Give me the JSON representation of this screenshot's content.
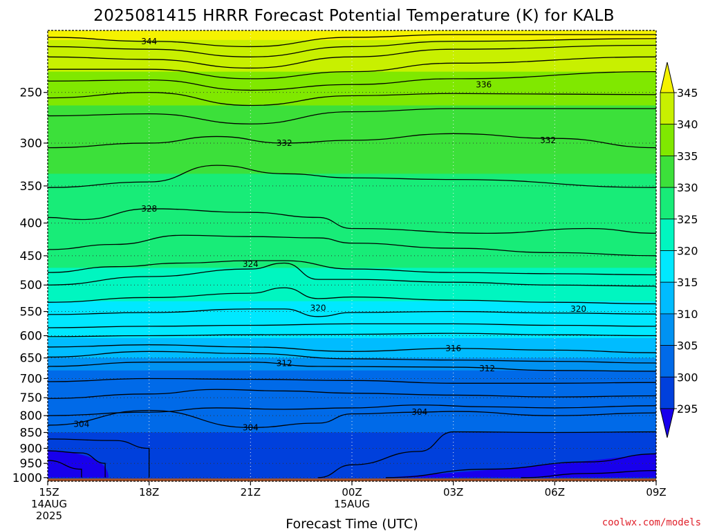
{
  "chart_data": {
    "type": "contour",
    "title": "2025081415 HRRR Forecast Potential Temperature (K) for KALB",
    "xlabel": "Forecast Time (UTC)",
    "credit": "coolwx.com/models",
    "y_axis": {
      "scale": "log-pressure",
      "ticks": [
        250,
        300,
        350,
        400,
        450,
        500,
        550,
        600,
        650,
        700,
        750,
        800,
        850,
        900,
        950,
        1000
      ],
      "range_hPa": [
        200,
        1013
      ]
    },
    "x_axis": {
      "range_hours": [
        0,
        18
      ],
      "ticks": [
        {
          "hour": 0,
          "lines": [
            "15Z",
            "14AUG",
            "2025"
          ]
        },
        {
          "hour": 3,
          "lines": [
            "18Z"
          ]
        },
        {
          "hour": 6,
          "lines": [
            "21Z"
          ]
        },
        {
          "hour": 9,
          "lines": [
            "00Z",
            "15AUG"
          ]
        },
        {
          "hour": 12,
          "lines": [
            "03Z"
          ]
        },
        {
          "hour": 15,
          "lines": [
            "06Z"
          ]
        },
        {
          "hour": 18,
          "lines": [
            "09Z"
          ]
        }
      ]
    },
    "grid": "dotted",
    "colorbar": {
      "labels": [
        "345",
        "340",
        "335",
        "330",
        "325",
        "320",
        "315",
        "310",
        "305",
        "300",
        "295"
      ],
      "fill_colors": [
        "#f5f200",
        "#c8f000",
        "#80e800",
        "#3ce03a",
        "#18ec78",
        "#00f6c0",
        "#00e8ff",
        "#00bcff",
        "#0092f2",
        "#006ae8",
        "#0040dc",
        "#1800ec"
      ]
    },
    "contour_labels": [
      {
        "text": "344",
        "hour": 3.0,
        "p": 208
      },
      {
        "text": "336",
        "hour": 12.9,
        "p": 243
      },
      {
        "text": "332",
        "hour": 7.0,
        "p": 300
      },
      {
        "text": "332",
        "hour": 14.8,
        "p": 297
      },
      {
        "text": "328",
        "hour": 3.0,
        "p": 380
      },
      {
        "text": "324",
        "hour": 6.0,
        "p": 464
      },
      {
        "text": "320",
        "hour": 8.0,
        "p": 543
      },
      {
        "text": "320",
        "hour": 15.7,
        "p": 545
      },
      {
        "text": "316",
        "hour": 12.0,
        "p": 628
      },
      {
        "text": "312",
        "hour": 7.0,
        "p": 663
      },
      {
        "text": "312",
        "hour": 13.0,
        "p": 675
      },
      {
        "text": "304",
        "hour": 1.0,
        "p": 825
      },
      {
        "text": "304",
        "hour": 6.0,
        "p": 835
      },
      {
        "text": "304",
        "hour": 11.0,
        "p": 790
      }
    ],
    "contours": [
      {
        "value": 344,
        "points": [
          [
            0,
            205
          ],
          [
            3,
            208
          ],
          [
            6,
            212
          ],
          [
            9,
            205
          ],
          [
            12,
            203
          ],
          [
            18,
            203
          ]
        ]
      },
      {
        "value": 342,
        "points": [
          [
            0,
            212
          ],
          [
            3,
            214
          ],
          [
            6,
            220
          ],
          [
            9,
            212
          ],
          [
            12,
            208
          ],
          [
            18,
            206
          ]
        ]
      },
      {
        "value": 340,
        "points": [
          [
            0,
            220
          ],
          [
            3,
            222
          ],
          [
            6,
            229
          ],
          [
            9,
            220
          ],
          [
            12,
            214
          ],
          [
            18,
            211
          ]
        ]
      },
      {
        "value": 338,
        "points": [
          [
            0,
            230
          ],
          [
            3,
            230
          ],
          [
            6,
            238
          ],
          [
            9,
            232
          ],
          [
            12,
            225
          ],
          [
            18,
            220
          ]
        ]
      },
      {
        "value": 336,
        "points": [
          [
            0,
            240
          ],
          [
            3,
            239
          ],
          [
            6,
            248
          ],
          [
            9,
            243
          ],
          [
            12,
            238
          ],
          [
            18,
            232
          ]
        ]
      },
      {
        "value": 334,
        "points": [
          [
            0,
            255
          ],
          [
            3,
            250
          ],
          [
            6,
            262
          ],
          [
            9,
            253
          ],
          [
            12,
            251
          ],
          [
            18,
            252
          ]
        ]
      },
      {
        "value": 333,
        "points": [
          [
            0,
            272
          ],
          [
            3,
            270
          ],
          [
            6,
            280
          ],
          [
            9,
            268
          ],
          [
            12,
            265
          ],
          [
            18,
            265
          ]
        ]
      },
      {
        "value": 332,
        "points": [
          [
            0,
            305
          ],
          [
            3,
            300
          ],
          [
            5,
            293
          ],
          [
            7,
            300
          ],
          [
            9,
            297
          ],
          [
            12,
            290
          ],
          [
            15,
            295
          ],
          [
            18,
            305
          ]
        ]
      },
      {
        "value": 330,
        "points": [
          [
            0,
            352
          ],
          [
            3,
            345
          ],
          [
            5,
            325
          ],
          [
            7,
            335
          ],
          [
            9,
            340
          ],
          [
            12,
            342
          ],
          [
            18,
            352
          ]
        ]
      },
      {
        "value": 328,
        "points": [
          [
            0,
            392
          ],
          [
            1,
            395
          ],
          [
            3,
            380
          ],
          [
            6,
            385
          ],
          [
            8,
            392
          ],
          [
            9,
            408
          ],
          [
            13,
            415
          ],
          [
            16,
            408
          ],
          [
            18,
            415
          ]
        ]
      },
      {
        "value": 326,
        "points": [
          [
            0,
            440
          ],
          [
            2,
            432
          ],
          [
            4,
            418
          ],
          [
            6,
            420
          ],
          [
            8,
            422
          ],
          [
            9,
            430
          ],
          [
            12,
            438
          ],
          [
            15,
            445
          ],
          [
            18,
            450
          ]
        ]
      },
      {
        "value": 325,
        "points": [
          [
            0,
            478
          ],
          [
            2,
            468
          ],
          [
            4,
            462
          ],
          [
            6,
            458
          ],
          [
            7,
            458
          ],
          [
            9,
            472
          ],
          [
            12,
            478
          ],
          [
            15,
            480
          ],
          [
            18,
            482
          ]
        ]
      },
      {
        "value": 324,
        "points": [
          [
            0,
            500
          ],
          [
            3,
            485
          ],
          [
            6,
            472
          ],
          [
            7,
            462
          ],
          [
            8,
            490
          ],
          [
            9,
            490
          ],
          [
            12,
            495
          ],
          [
            15,
            500
          ],
          [
            18,
            502
          ]
        ]
      },
      {
        "value": 322,
        "points": [
          [
            0,
            532
          ],
          [
            3,
            523
          ],
          [
            6,
            515
          ],
          [
            7,
            505
          ],
          [
            8,
            525
          ],
          [
            9,
            522
          ],
          [
            12,
            528
          ],
          [
            15,
            532
          ],
          [
            18,
            535
          ]
        ]
      },
      {
        "value": 320,
        "points": [
          [
            0,
            556
          ],
          [
            3,
            552
          ],
          [
            6,
            545
          ],
          [
            7,
            545
          ],
          [
            8,
            560
          ],
          [
            9,
            552
          ],
          [
            12,
            550
          ],
          [
            15,
            553
          ],
          [
            18,
            555
          ]
        ]
      },
      {
        "value": 318,
        "points": [
          [
            0,
            583
          ],
          [
            3,
            580
          ],
          [
            6,
            578
          ],
          [
            9,
            575
          ],
          [
            12,
            575
          ],
          [
            15,
            578
          ],
          [
            18,
            580
          ]
        ]
      },
      {
        "value": 317,
        "points": [
          [
            0,
            602
          ],
          [
            3,
            600
          ],
          [
            6,
            598
          ],
          [
            9,
            597
          ],
          [
            12,
            595
          ],
          [
            15,
            598
          ],
          [
            18,
            600
          ]
        ]
      },
      {
        "value": 316,
        "points": [
          [
            0,
            625
          ],
          [
            3,
            620
          ],
          [
            6,
            625
          ],
          [
            9,
            635
          ],
          [
            12,
            628
          ],
          [
            15,
            632
          ],
          [
            18,
            638
          ]
        ]
      },
      {
        "value": 314,
        "points": [
          [
            0,
            648
          ],
          [
            3,
            635
          ],
          [
            6,
            640
          ],
          [
            9,
            652
          ],
          [
            12,
            655
          ],
          [
            15,
            658
          ],
          [
            18,
            662
          ]
        ]
      },
      {
        "value": 312,
        "points": [
          [
            0,
            670
          ],
          [
            3,
            660
          ],
          [
            6,
            660
          ],
          [
            8,
            670
          ],
          [
            12,
            672
          ],
          [
            15,
            680
          ],
          [
            18,
            682
          ]
        ]
      },
      {
        "value": 310,
        "points": [
          [
            0,
            708
          ],
          [
            3,
            700
          ],
          [
            6,
            702
          ],
          [
            9,
            705
          ],
          [
            12,
            712
          ],
          [
            15,
            712
          ],
          [
            18,
            710
          ]
        ]
      },
      {
        "value": 308,
        "points": [
          [
            0,
            752
          ],
          [
            3,
            740
          ],
          [
            5,
            728
          ],
          [
            7,
            732
          ],
          [
            9,
            738
          ],
          [
            12,
            743
          ],
          [
            15,
            748
          ],
          [
            18,
            745
          ]
        ]
      },
      {
        "value": 306,
        "points": [
          [
            0,
            800
          ],
          [
            3,
            790
          ],
          [
            5,
            778
          ],
          [
            7,
            782
          ],
          [
            9,
            778
          ],
          [
            11,
            770
          ],
          [
            13,
            775
          ],
          [
            15,
            778
          ],
          [
            18,
            772
          ]
        ]
      },
      {
        "value": 304,
        "points": [
          [
            0,
            828
          ],
          [
            3,
            785
          ],
          [
            6,
            835
          ],
          [
            8,
            822
          ],
          [
            9,
            795
          ],
          [
            11,
            790
          ],
          [
            12,
            788
          ],
          [
            15,
            800
          ],
          [
            18,
            792
          ]
        ]
      },
      {
        "value": 302,
        "points": [
          [
            0,
            870
          ],
          [
            2,
            875
          ],
          [
            3,
            900
          ],
          [
            3,
            1000
          ]
        ]
      },
      {
        "value": 302,
        "points": [
          [
            8,
            1000
          ],
          [
            9,
            955
          ],
          [
            11,
            910
          ],
          [
            12,
            848
          ],
          [
            15,
            850
          ],
          [
            18,
            848
          ]
        ]
      },
      {
        "value": 300,
        "points": [
          [
            0,
            908
          ],
          [
            1,
            915
          ],
          [
            1.7,
            950
          ],
          [
            1.7,
            1000
          ]
        ]
      },
      {
        "value": 300,
        "points": [
          [
            10,
            1000
          ],
          [
            13,
            970
          ],
          [
            16,
            945
          ],
          [
            18,
            918
          ]
        ]
      },
      {
        "value": 298,
        "points": [
          [
            0,
            940
          ],
          [
            1,
            970
          ],
          [
            1,
            1000
          ]
        ]
      },
      {
        "value": 298,
        "points": [
          [
            14,
            1000
          ],
          [
            16,
            985
          ],
          [
            18,
            975
          ]
        ]
      }
    ]
  }
}
